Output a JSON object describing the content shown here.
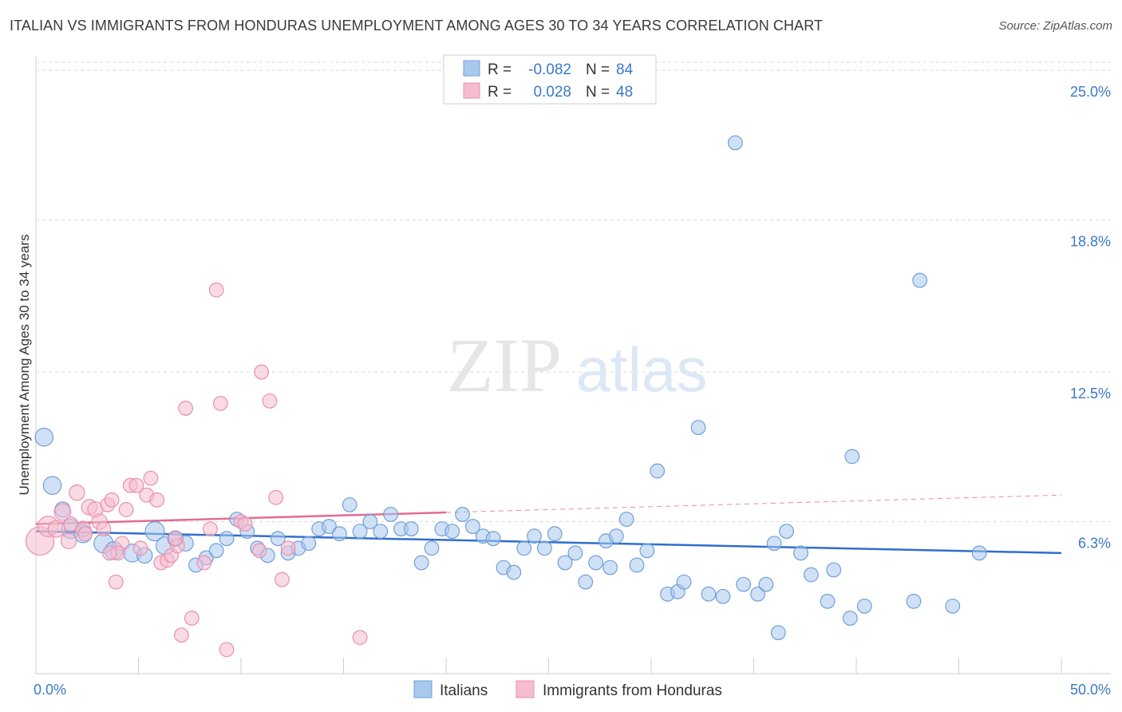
{
  "title": "ITALIAN VS IMMIGRANTS FROM HONDURAS UNEMPLOYMENT AMONG AGES 30 TO 34 YEARS CORRELATION CHART",
  "source": "Source: ZipAtlas.com",
  "watermark": {
    "zip": "ZIP",
    "atlas": "atlas"
  },
  "legend_top": [
    {
      "r_label": "R = ",
      "r_value": "-0.082",
      "n_label": "N = ",
      "n_value": "84"
    },
    {
      "r_label": "R = ",
      "r_value": "0.028",
      "n_label": "N = ",
      "n_value": "48"
    }
  ],
  "legend_bottom": [
    "Italians",
    "Immigrants from Honduras"
  ],
  "colors": {
    "blue_fill": "#a9c8ee",
    "blue_stroke": "#6f9fd8",
    "blue_line": "#2f6fcc",
    "pink_fill": "#f6bcd0",
    "pink_stroke": "#e890ad",
    "pink_line": "#e46a94",
    "tick": "#3a78c9",
    "grid": "#d9d9d9"
  },
  "chart_data": {
    "type": "scatter",
    "title": "ITALIAN VS IMMIGRANTS FROM HONDURAS UNEMPLOYMENT AMONG AGES 30 TO 34 YEARS CORRELATION CHART",
    "xlabel": "",
    "ylabel": "Unemployment Among Ages 30 to 34 years",
    "xlim": [
      0,
      50
    ],
    "ylim": [
      0,
      25.6
    ],
    "x_ticks": [
      0,
      5,
      10,
      15,
      20,
      25,
      30,
      35,
      40,
      45,
      50
    ],
    "x_tick_labels": [
      {
        "value": 0,
        "label": "0.0%"
      },
      {
        "value": 50,
        "label": "50.0%"
      }
    ],
    "y_ticks": [
      {
        "value": 6.3,
        "label": "6.3%"
      },
      {
        "value": 12.5,
        "label": "12.5%"
      },
      {
        "value": 18.8,
        "label": "18.8%"
      },
      {
        "value": 25.0,
        "label": "25.0%"
      }
    ],
    "grid": true,
    "series": [
      {
        "name": "Italians",
        "color": "blue",
        "R": -0.082,
        "N": 84,
        "trend": {
          "x": [
            0,
            50
          ],
          "y": [
            5.9,
            5.0
          ],
          "dashed_from": null
        },
        "points": [
          [
            0.4,
            9.8,
            1.4
          ],
          [
            0.8,
            7.8,
            1.4
          ],
          [
            1.3,
            6.8,
            1.2
          ],
          [
            1.7,
            6.0,
            1.5
          ],
          [
            2.3,
            5.8,
            1.4
          ],
          [
            3.3,
            5.4,
            1.5
          ],
          [
            3.8,
            5.1,
            1.4
          ],
          [
            4.7,
            5.0,
            1.4
          ],
          [
            5.3,
            4.9,
            1.2
          ],
          [
            5.8,
            5.9,
            1.5
          ],
          [
            6.3,
            5.3,
            1.4
          ],
          [
            6.8,
            5.6,
            1.2
          ],
          [
            7.3,
            5.4,
            1.2
          ],
          [
            7.8,
            4.5,
            1.1
          ],
          [
            8.3,
            4.8,
            1.1
          ],
          [
            8.8,
            5.1,
            1.1
          ],
          [
            9.3,
            5.6,
            1.1
          ],
          [
            9.8,
            6.4,
            1.1
          ],
          [
            10.3,
            5.9,
            1.1
          ],
          [
            10.8,
            5.2,
            1.1
          ],
          [
            11.3,
            4.9,
            1.1
          ],
          [
            11.8,
            5.6,
            1.1
          ],
          [
            12.3,
            5.0,
            1.1
          ],
          [
            12.8,
            5.2,
            1.1
          ],
          [
            13.3,
            5.4,
            1.1
          ],
          [
            13.8,
            6.0,
            1.1
          ],
          [
            14.3,
            6.1,
            1.1
          ],
          [
            14.8,
            5.8,
            1.1
          ],
          [
            15.3,
            7.0,
            1.1
          ],
          [
            15.8,
            5.9,
            1.1
          ],
          [
            16.3,
            6.3,
            1.1
          ],
          [
            16.8,
            5.9,
            1.1
          ],
          [
            17.3,
            6.6,
            1.1
          ],
          [
            17.8,
            6.0,
            1.1
          ],
          [
            18.3,
            6.0,
            1.1
          ],
          [
            18.8,
            4.6,
            1.1
          ],
          [
            19.3,
            5.2,
            1.1
          ],
          [
            19.8,
            6.0,
            1.1
          ],
          [
            20.3,
            5.9,
            1.1
          ],
          [
            20.8,
            6.6,
            1.1
          ],
          [
            21.3,
            6.1,
            1.1
          ],
          [
            21.8,
            5.7,
            1.1
          ],
          [
            22.3,
            5.6,
            1.1
          ],
          [
            22.8,
            4.4,
            1.1
          ],
          [
            23.3,
            4.2,
            1.1
          ],
          [
            23.8,
            5.2,
            1.1
          ],
          [
            24.3,
            5.7,
            1.1
          ],
          [
            24.8,
            5.2,
            1.1
          ],
          [
            25.3,
            5.8,
            1.1
          ],
          [
            25.8,
            4.6,
            1.1
          ],
          [
            26.3,
            5.0,
            1.1
          ],
          [
            26.8,
            3.8,
            1.1
          ],
          [
            27.3,
            4.6,
            1.1
          ],
          [
            27.8,
            5.5,
            1.1
          ],
          [
            28.3,
            5.7,
            1.1
          ],
          [
            28.8,
            6.4,
            1.1
          ],
          [
            29.3,
            4.5,
            1.1
          ],
          [
            29.8,
            5.1,
            1.1
          ],
          [
            30.3,
            8.4,
            1.1
          ],
          [
            30.8,
            3.3,
            1.1
          ],
          [
            31.3,
            3.4,
            1.1
          ],
          [
            31.6,
            3.8,
            1.1
          ],
          [
            32.3,
            10.2,
            1.1
          ],
          [
            32.8,
            3.3,
            1.1
          ],
          [
            33.5,
            3.2,
            1.1
          ],
          [
            34.1,
            22.0,
            1.1
          ],
          [
            34.5,
            3.7,
            1.1
          ],
          [
            35.2,
            3.3,
            1.1
          ],
          [
            35.6,
            3.7,
            1.1
          ],
          [
            36.2,
            1.7,
            1.1
          ],
          [
            36.6,
            5.9,
            1.1
          ],
          [
            37.3,
            5.0,
            1.1
          ],
          [
            37.8,
            4.1,
            1.1
          ],
          [
            38.6,
            3.0,
            1.1
          ],
          [
            38.9,
            4.3,
            1.1
          ],
          [
            39.8,
            9.0,
            1.1
          ],
          [
            39.7,
            2.3,
            1.1
          ],
          [
            40.4,
            2.8,
            1.1
          ],
          [
            42.8,
            3.0,
            1.1
          ],
          [
            43.1,
            16.3,
            1.1
          ],
          [
            44.7,
            2.8,
            1.1
          ],
          [
            46.0,
            5.0,
            1.1
          ],
          [
            36.0,
            5.4,
            1.1
          ],
          [
            28.0,
            4.4,
            1.1
          ]
        ]
      },
      {
        "name": "Immigrants from Honduras",
        "color": "pink",
        "R": 0.028,
        "N": 48,
        "trend": {
          "x": [
            0,
            50
          ],
          "y": [
            6.2,
            7.4
          ],
          "dashed_from": 20
        },
        "points": [
          [
            0.2,
            5.5,
            2.2
          ],
          [
            0.6,
            6.1,
            1.6
          ],
          [
            1.0,
            6.0,
            1.3
          ],
          [
            1.3,
            6.7,
            1.3
          ],
          [
            1.6,
            5.5,
            1.2
          ],
          [
            2.0,
            7.5,
            1.2
          ],
          [
            2.3,
            6.0,
            1.2
          ],
          [
            2.6,
            6.9,
            1.2
          ],
          [
            2.9,
            6.8,
            1.2
          ],
          [
            3.1,
            6.3,
            1.2
          ],
          [
            3.3,
            6.0,
            1.1
          ],
          [
            3.5,
            7.0,
            1.1
          ],
          [
            3.7,
            7.2,
            1.1
          ],
          [
            3.9,
            3.8,
            1.1
          ],
          [
            4.2,
            5.4,
            1.1
          ],
          [
            4.4,
            6.8,
            1.1
          ],
          [
            4.6,
            7.8,
            1.1
          ],
          [
            4.9,
            7.8,
            1.1
          ],
          [
            5.1,
            5.2,
            1.1
          ],
          [
            5.4,
            7.4,
            1.1
          ],
          [
            5.6,
            8.1,
            1.1
          ],
          [
            5.9,
            7.2,
            1.1
          ],
          [
            6.1,
            4.6,
            1.1
          ],
          [
            6.4,
            4.7,
            1.1
          ],
          [
            6.6,
            4.9,
            1.1
          ],
          [
            6.9,
            5.3,
            1.1
          ],
          [
            7.1,
            1.6,
            1.1
          ],
          [
            7.3,
            11.0,
            1.1
          ],
          [
            7.6,
            2.3,
            1.1
          ],
          [
            8.2,
            4.6,
            1.1
          ],
          [
            8.5,
            6.0,
            1.1
          ],
          [
            8.8,
            15.9,
            1.1
          ],
          [
            9.0,
            11.2,
            1.1
          ],
          [
            9.3,
            1.0,
            1.1
          ],
          [
            10.0,
            6.3,
            1.1
          ],
          [
            10.2,
            6.2,
            1.1
          ],
          [
            10.9,
            5.1,
            1.1
          ],
          [
            11.0,
            12.5,
            1.1
          ],
          [
            11.4,
            11.3,
            1.1
          ],
          [
            11.7,
            7.3,
            1.1
          ],
          [
            12.0,
            3.9,
            1.1
          ],
          [
            12.3,
            5.2,
            1.1
          ],
          [
            15.8,
            1.5,
            1.1
          ],
          [
            4.0,
            5.0,
            1.1
          ],
          [
            2.4,
            5.8,
            1.1
          ],
          [
            1.7,
            6.2,
            1.1
          ],
          [
            6.8,
            5.6,
            1.1
          ],
          [
            3.6,
            5.0,
            1.1
          ]
        ]
      }
    ]
  }
}
